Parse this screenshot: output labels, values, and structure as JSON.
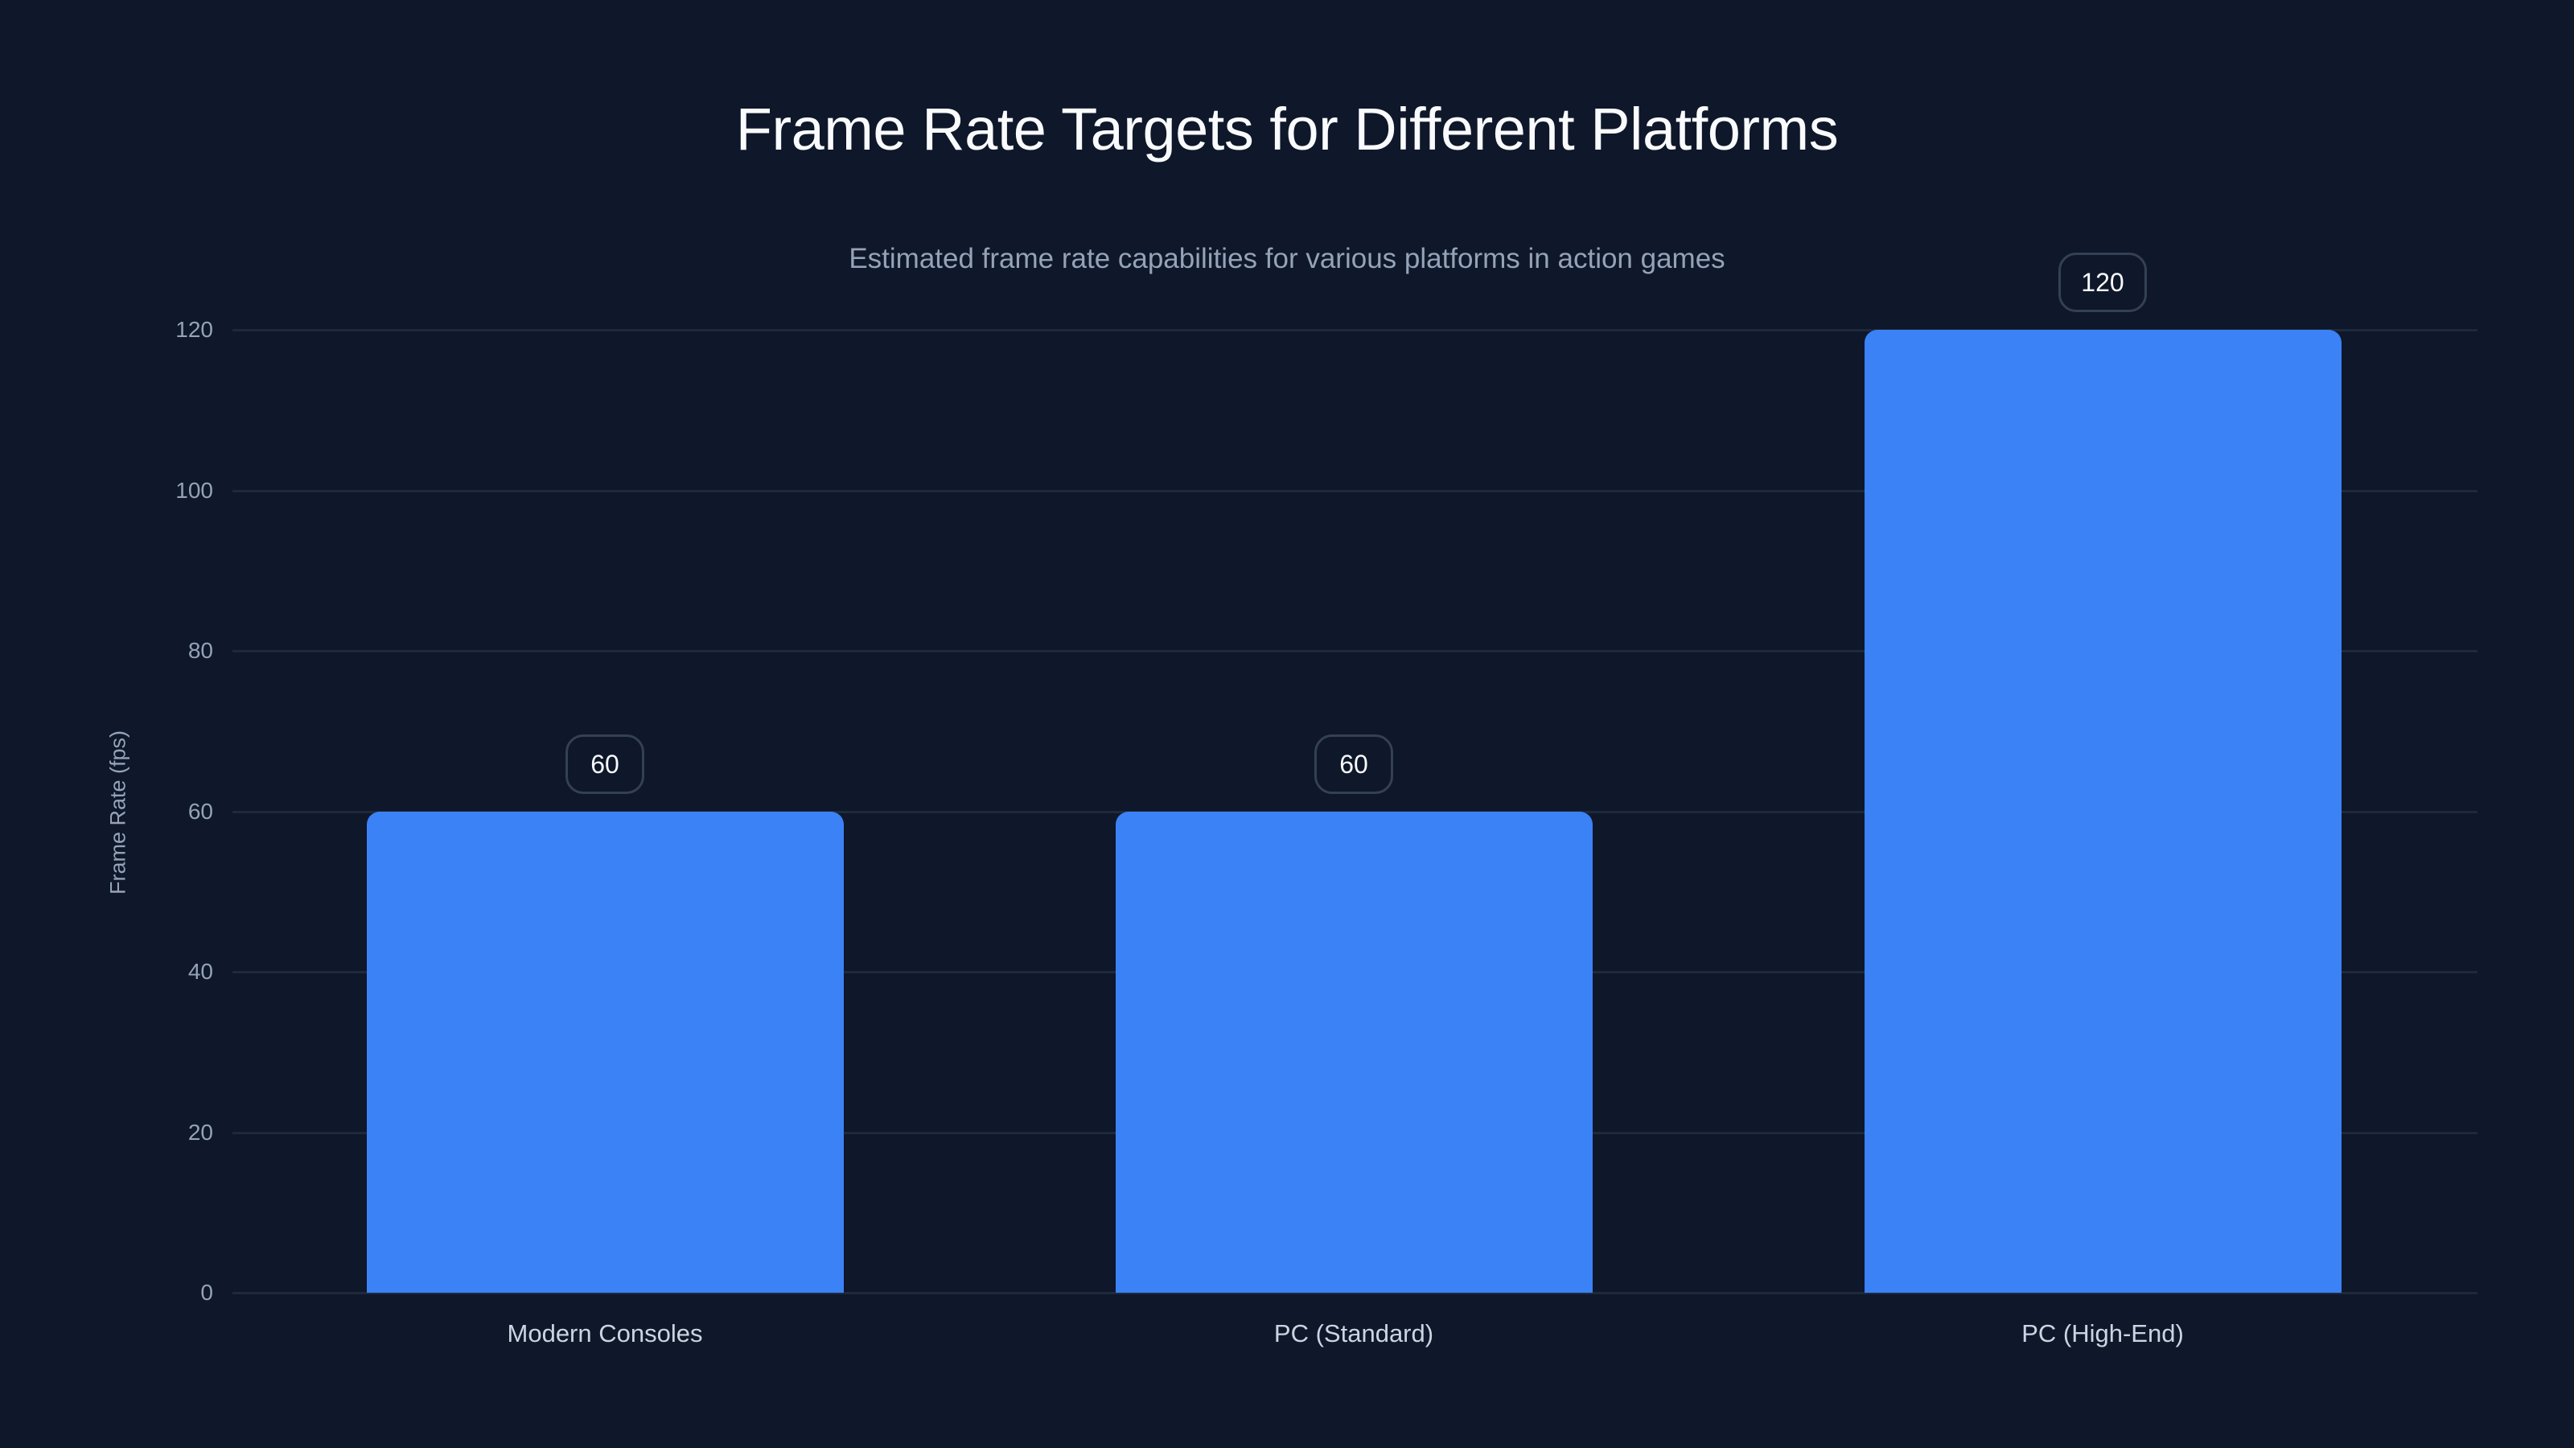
{
  "chart_data": {
    "type": "bar",
    "title": "Frame Rate Targets for Different Platforms",
    "subtitle": "Estimated frame rate capabilities for various platforms in action games",
    "xlabel": "",
    "ylabel": "Frame Rate (fps)",
    "categories": [
      "Modern Consoles",
      "PC (Standard)",
      "PC (High-End)"
    ],
    "values": [
      60,
      60,
      120
    ],
    "data_labels": [
      "60",
      "60",
      "120"
    ],
    "ylim": [
      0,
      120
    ],
    "yticks": [
      "0",
      "20",
      "40",
      "60",
      "80",
      "100",
      "120"
    ],
    "grid": true,
    "legend": null,
    "colors": {
      "bar": "#3b82f6",
      "background": "#0f172a",
      "grid": "#1e293b",
      "badge_border": "#334155"
    }
  }
}
